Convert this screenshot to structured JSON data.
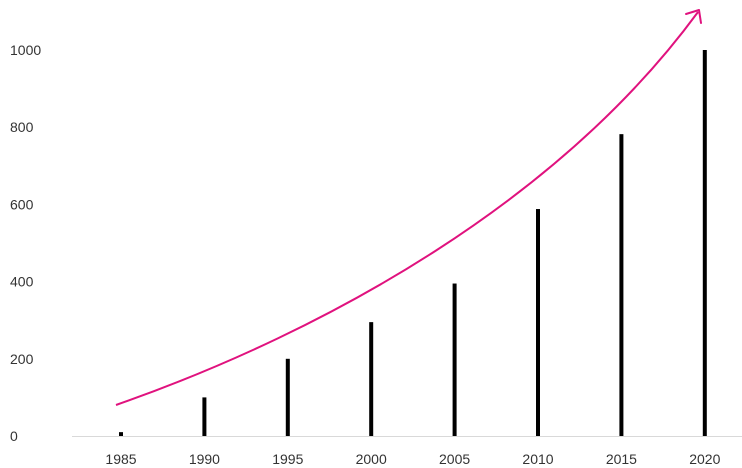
{
  "chart_data": {
    "type": "bar",
    "title": "",
    "xlabel": "",
    "ylabel": "",
    "categories": [
      "1985",
      "1990",
      "1995",
      "2000",
      "2005",
      "2010",
      "2015",
      "2020"
    ],
    "values": [
      10,
      100,
      200,
      295,
      395,
      588,
      782,
      1000
    ],
    "ylim": [
      0,
      1000
    ],
    "yticks": [
      0,
      200,
      400,
      600,
      800,
      1000
    ],
    "grid": false,
    "legend": "none",
    "colors": {
      "bar": "#000000",
      "trend": "#e0127e",
      "axis": "#d9d9d9",
      "text": "#333333"
    },
    "annotations": [
      {
        "type": "trend-arrow",
        "direction": "up",
        "style": "curved"
      }
    ]
  }
}
